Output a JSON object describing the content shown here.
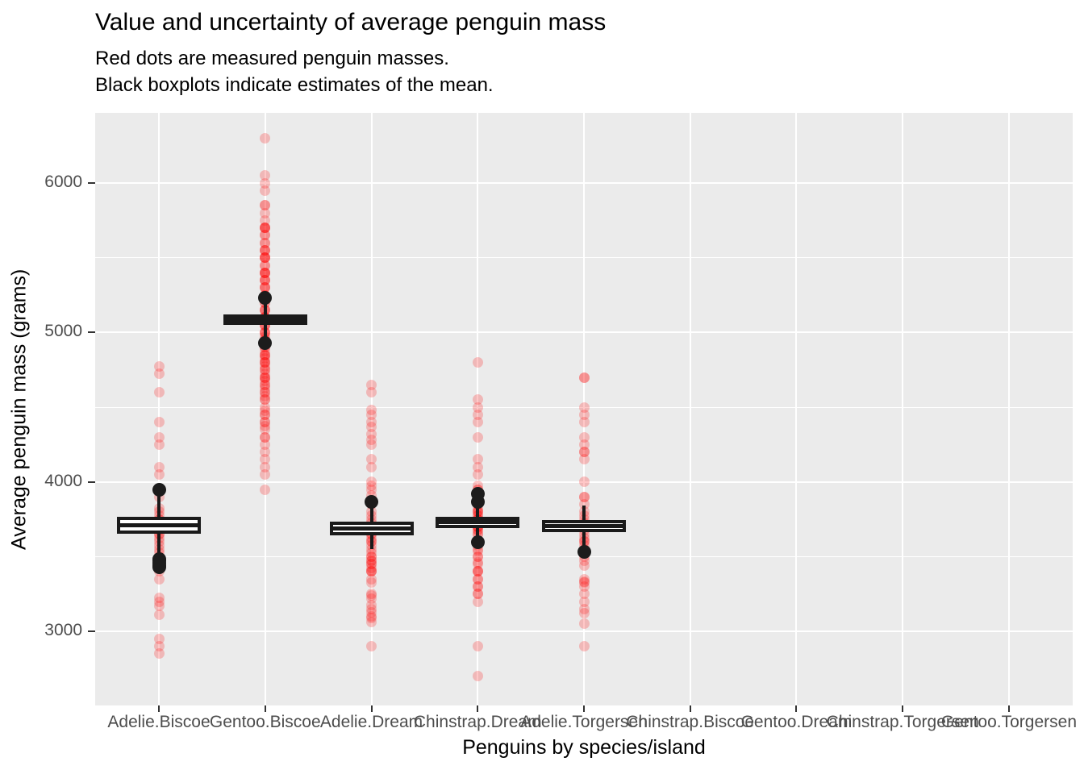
{
  "chart_data": {
    "type": "scatter",
    "overlay_type": "boxplot",
    "title": "Value and uncertainty of average penguin mass",
    "subtitle_line1": "Red dots are measured penguin masses.",
    "subtitle_line2": "Black boxplots indicate estimates of the mean.",
    "xlabel": "Penguins by species/island",
    "ylabel": "Average penguin mass (grams)",
    "legend": "none",
    "grid": "on",
    "ylim": [
      2504,
      6470
    ],
    "y_ticks": [
      3000,
      4000,
      5000,
      6000
    ],
    "y_minor_ticks": [
      3500,
      4500,
      5500
    ],
    "categories": [
      "Adelie.Biscoe",
      "Gentoo.Biscoe",
      "Adelie.Dream",
      "Chinstrap.Dream",
      "Adelie.Torgersen",
      "Chinstrap.Biscoe",
      "Gentoo.Dream",
      "Chinstrap.Torgersen",
      "Gentoo.Torgersen"
    ],
    "colors": {
      "panel_bg": "#EBEBEB",
      "gridline": "#FFFFFF",
      "point_red": "255,0,0",
      "point_alpha": 0.22,
      "box_stroke": "#1a1a1a",
      "box_fill": "#FFFFFF",
      "tick_mark": "#333333",
      "tick_label": "#4d4d4d",
      "text": "#000000"
    },
    "series": [
      {
        "category": "Adelie.Biscoe",
        "points": [
          4775,
          4725,
          4600,
          4400,
          4300,
          4250,
          4100,
          4050,
          3950,
          3900,
          3825,
          3800,
          3775,
          3750,
          3750,
          3725,
          3700,
          3700,
          3675,
          3650,
          3650,
          3625,
          3600,
          3575,
          3550,
          3525,
          3500,
          3475,
          3450,
          3450,
          3425,
          3400,
          3350,
          3225,
          3200,
          3170,
          3110,
          2950,
          2900,
          2850
        ],
        "boxplot": {
          "whisker_high": 3930,
          "q3": 3765,
          "median": 3710,
          "q1": 3655,
          "whisker_low": 3520,
          "outliers_high": [
            3945
          ],
          "outliers_low": [
            3485,
            3470,
            3455,
            3440,
            3430
          ]
        }
      },
      {
        "category": "Gentoo.Biscoe",
        "points": [
          6300,
          6050,
          6000,
          5950,
          5850,
          5850,
          5800,
          5750,
          5700,
          5700,
          5700,
          5700,
          5650,
          5650,
          5600,
          5600,
          5550,
          5550,
          5550,
          5500,
          5500,
          5500,
          5500,
          5450,
          5450,
          5400,
          5400,
          5400,
          5400,
          5350,
          5350,
          5350,
          5300,
          5300,
          5300,
          5250,
          5250,
          5250,
          5200,
          5200,
          5150,
          5150,
          5150,
          5100,
          5100,
          5100,
          5050,
          5050,
          5050,
          5000,
          5000,
          5000,
          4975,
          4950,
          4950,
          4925,
          4900,
          4900,
          4875,
          4850,
          4850,
          4850,
          4825,
          4800,
          4800,
          4800,
          4775,
          4750,
          4750,
          4725,
          4700,
          4700,
          4700,
          4675,
          4650,
          4650,
          4625,
          4600,
          4600,
          4575,
          4550,
          4550,
          4500,
          4475,
          4450,
          4450,
          4400,
          4400,
          4375,
          4350,
          4300,
          4300,
          4250,
          4200,
          4150,
          4100,
          4050,
          3950
        ],
        "boxplot": {
          "whisker_high": 5225,
          "q3": 5120,
          "median": 5085,
          "q1": 5050,
          "whisker_low": 4940,
          "outliers_high": [
            5230
          ],
          "outliers_low": [
            4930
          ]
        }
      },
      {
        "category": "Adelie.Dream",
        "points": [
          4650,
          4600,
          4480,
          4450,
          4400,
          4370,
          4320,
          4280,
          4250,
          4150,
          4100,
          4000,
          3975,
          3950,
          3910,
          3875,
          3870,
          3850,
          3800,
          3775,
          3750,
          3725,
          3700,
          3700,
          3675,
          3650,
          3650,
          3625,
          3600,
          3600,
          3575,
          3550,
          3525,
          3500,
          3500,
          3475,
          3475,
          3450,
          3450,
          3425,
          3400,
          3400,
          3400,
          3350,
          3325,
          3250,
          3240,
          3220,
          3175,
          3150,
          3125,
          3100,
          3090,
          3060,
          2900
        ],
        "boxplot": {
          "whisker_high": 3860,
          "q3": 3735,
          "median": 3690,
          "q1": 3640,
          "whisker_low": 3550,
          "outliers_high": [
            3865
          ],
          "outliers_low": []
        }
      },
      {
        "category": "Chinstrap.Dream",
        "points": [
          4800,
          4550,
          4500,
          4450,
          4400,
          4300,
          4150,
          4100,
          4050,
          3975,
          3950,
          3950,
          3900,
          3900,
          3875,
          3850,
          3850,
          3825,
          3800,
          3800,
          3800,
          3775,
          3775,
          3750,
          3750,
          3750,
          3725,
          3725,
          3700,
          3700,
          3700,
          3675,
          3675,
          3650,
          3650,
          3600,
          3600,
          3575,
          3550,
          3540,
          3500,
          3500,
          3460,
          3450,
          3400,
          3400,
          3400,
          3350,
          3350,
          3300,
          3300,
          3250,
          3250,
          3200,
          2900,
          2700
        ],
        "boxplot": {
          "whisker_high": 3915,
          "q3": 3765,
          "median": 3730,
          "q1": 3690,
          "whisker_low": 3605,
          "outliers_high": [
            3920,
            3865
          ],
          "outliers_low": [
            3595
          ]
        }
      },
      {
        "category": "Adelie.Torgersen",
        "points": [
          4700,
          4700,
          4500,
          4450,
          4400,
          4300,
          4250,
          4200,
          4200,
          4150,
          4000,
          3900,
          3900,
          3850,
          3800,
          3775,
          3750,
          3725,
          3700,
          3700,
          3675,
          3650,
          3625,
          3600,
          3600,
          3575,
          3550,
          3525,
          3500,
          3470,
          3440,
          3350,
          3330,
          3325,
          3300,
          3250,
          3200,
          3150,
          3120,
          3050,
          2900
        ],
        "boxplot": {
          "whisker_high": 3840,
          "q3": 3745,
          "median": 3707,
          "q1": 3665,
          "whisker_low": 3535,
          "outliers_high": [],
          "outliers_low": [
            3530
          ]
        }
      },
      {
        "category": "Chinstrap.Biscoe",
        "points": [],
        "boxplot": null
      },
      {
        "category": "Gentoo.Dream",
        "points": [],
        "boxplot": null
      },
      {
        "category": "Chinstrap.Torgersen",
        "points": [],
        "boxplot": null
      },
      {
        "category": "Gentoo.Torgersen",
        "points": [],
        "boxplot": null
      }
    ]
  }
}
